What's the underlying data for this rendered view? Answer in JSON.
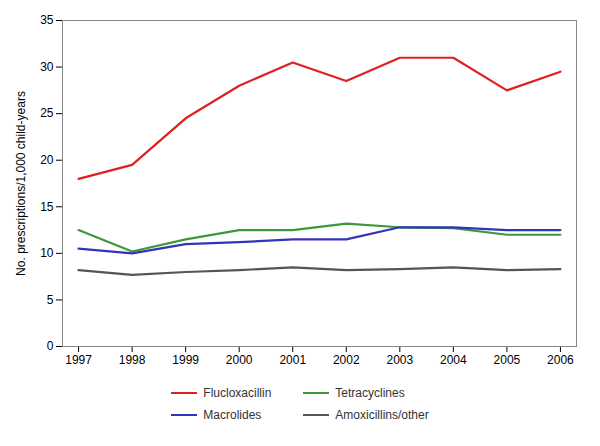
{
  "chart_data": {
    "type": "line",
    "ylabel": "No. prescriptions/1,000 child-years",
    "x": [
      1997,
      1998,
      1999,
      2000,
      2001,
      2002,
      2003,
      2004,
      2005,
      2006
    ],
    "xlim": [
      1996.7,
      2006.3
    ],
    "xticks": [
      1997,
      1998,
      1999,
      2000,
      2001,
      2002,
      2003,
      2004,
      2005,
      2006
    ],
    "ylim": [
      0,
      35
    ],
    "yticks": [
      0,
      5,
      10,
      15,
      20,
      25,
      30,
      35
    ],
    "grid": false,
    "legend": "bottom",
    "series": [
      {
        "name": "Flucloxacillin",
        "color": "#e02020",
        "values": [
          18.0,
          19.5,
          24.5,
          28.0,
          30.5,
          28.5,
          31.0,
          31.0,
          27.5,
          29.5
        ]
      },
      {
        "name": "Tetracyclines",
        "color": "#3a9a3a",
        "values": [
          12.5,
          10.2,
          11.5,
          12.5,
          12.5,
          13.2,
          12.8,
          12.7,
          12.0,
          12.0
        ]
      },
      {
        "name": "Macrolides",
        "color": "#3333bb",
        "values": [
          10.5,
          10.0,
          11.0,
          11.2,
          11.5,
          11.5,
          12.8,
          12.8,
          12.5,
          12.5
        ]
      },
      {
        "name": "Amoxicillins/other",
        "color": "#555555",
        "values": [
          8.2,
          7.7,
          8.0,
          8.2,
          8.5,
          8.2,
          8.3,
          8.5,
          8.2,
          8.3
        ]
      }
    ]
  }
}
